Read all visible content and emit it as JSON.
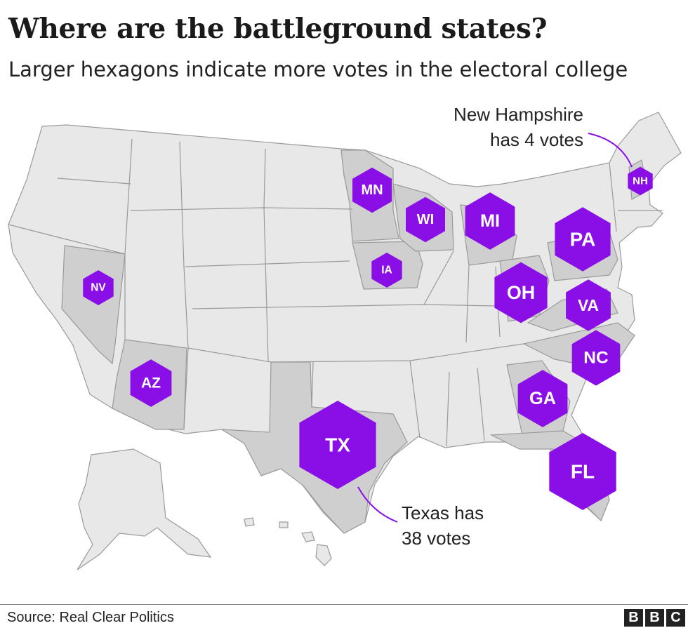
{
  "title": "Where are the battleground states?",
  "subtitle": "Larger hexagons indicate more votes in the electoral college",
  "source": "Source: Real Clear Politics",
  "logo": "BBC",
  "colors": {
    "hexagon": "#8a0ee6",
    "hexagon_text": "#ffffff",
    "state_default": "#e8e8e8",
    "state_battleground": "#cfcfcf",
    "state_border": "#9a9a9a",
    "annotation_line": "#8a0ee6"
  },
  "states": [
    {
      "code": "MN",
      "votes": 10
    },
    {
      "code": "WI",
      "votes": 10
    },
    {
      "code": "MI",
      "votes": 16
    },
    {
      "code": "NH",
      "votes": 4
    },
    {
      "code": "PA",
      "votes": 20
    },
    {
      "code": "IA",
      "votes": 6
    },
    {
      "code": "NV",
      "votes": 6
    },
    {
      "code": "OH",
      "votes": 18
    },
    {
      "code": "VA",
      "votes": 13
    },
    {
      "code": "NC",
      "votes": 15
    },
    {
      "code": "AZ",
      "votes": 11
    },
    {
      "code": "GA",
      "votes": 16
    },
    {
      "code": "TX",
      "votes": 38
    },
    {
      "code": "FL",
      "votes": 29
    }
  ],
  "annotations": {
    "nh_line1": "New Hampshire",
    "nh_line2": "has 4 votes",
    "tx_line1": "Texas has",
    "tx_line2": "38 votes"
  }
}
